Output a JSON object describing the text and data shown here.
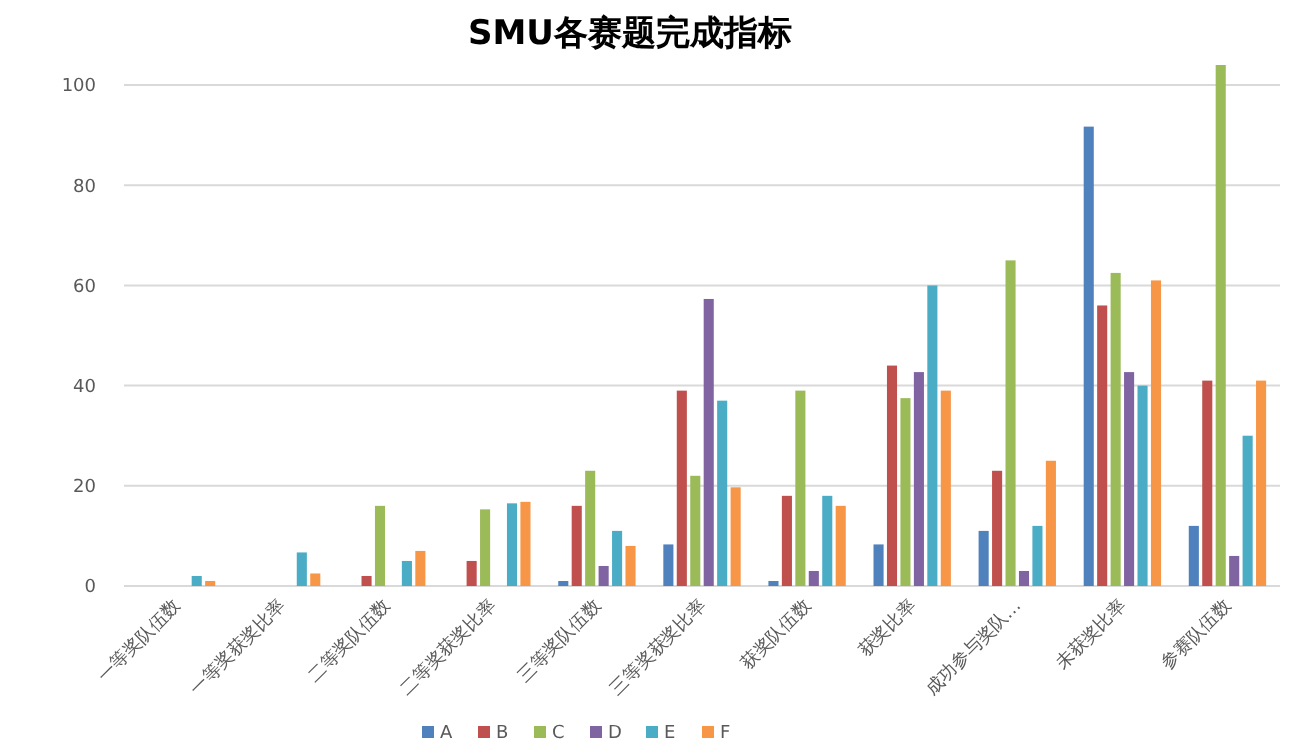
{
  "chart_data": {
    "type": "bar",
    "title": "SMU各赛题完成指标",
    "categories": [
      "一等奖队伍数",
      "一等奖获奖比率",
      "二等奖队伍数",
      "二等奖获奖比率",
      "三等奖队伍数",
      "三等奖获奖比率",
      "获奖队伍数",
      "获奖比率",
      "成功参与奖队…",
      "未获奖比率",
      "参赛队伍数"
    ],
    "series": [
      {
        "name": "A",
        "color": "#4f81bd",
        "values": [
          0,
          0,
          0,
          0,
          1,
          8.3,
          1,
          8.3,
          11,
          91.7,
          12
        ]
      },
      {
        "name": "B",
        "color": "#c0504d",
        "values": [
          0,
          0,
          2,
          5,
          16,
          39,
          18,
          44,
          23,
          56,
          41
        ]
      },
      {
        "name": "C",
        "color": "#9bbb59",
        "values": [
          0,
          0,
          16,
          15.3,
          23,
          22,
          39,
          37.5,
          65,
          62.5,
          104
        ]
      },
      {
        "name": "D",
        "color": "#8064a2",
        "values": [
          0,
          0,
          0,
          0,
          4,
          57.3,
          3,
          42.7,
          3,
          42.7,
          6
        ]
      },
      {
        "name": "E",
        "color": "#4bacc6",
        "values": [
          2,
          6.7,
          5,
          16.5,
          11,
          37,
          18,
          60,
          12,
          40,
          30
        ]
      },
      {
        "name": "F",
        "color": "#f79646",
        "values": [
          1,
          2.5,
          7,
          16.8,
          8,
          19.7,
          16,
          39,
          25,
          61,
          41
        ]
      }
    ],
    "ylim": [
      0,
      105
    ],
    "yticks": [
      0,
      20,
      40,
      60,
      80,
      100
    ],
    "grid": "y",
    "legend": "bottom"
  }
}
